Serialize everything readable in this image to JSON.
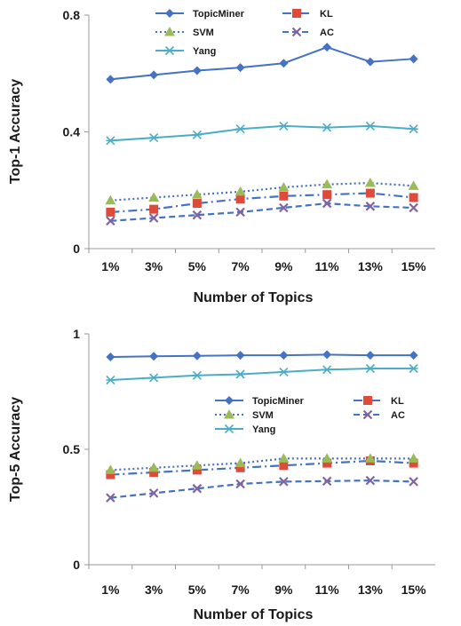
{
  "chart_data": [
    {
      "type": "line",
      "xlabel": "Number of Topics",
      "ylabel": "Top-1 Accuracy",
      "categories": [
        "1%",
        "3%",
        "5%",
        "7%",
        "9%",
        "11%",
        "13%",
        "15%"
      ],
      "ylim": [
        0,
        0.8
      ],
      "yticks": [
        0,
        0.4,
        0.8
      ],
      "ytick_labels": [
        "0",
        "0.4",
        "0.8"
      ],
      "legend_position": "top",
      "series": [
        {
          "name": "TopicMiner",
          "color": "#4472c4",
          "dash": "solid",
          "marker": "diamond",
          "values": [
            0.58,
            0.595,
            0.61,
            0.62,
            0.635,
            0.69,
            0.64,
            0.65
          ]
        },
        {
          "name": "KL",
          "color": "#4472c4",
          "dash": "dashdot",
          "marker": "square",
          "marker_color": "#e04a3a",
          "values": [
            0.125,
            0.135,
            0.155,
            0.17,
            0.18,
            0.185,
            0.19,
            0.175
          ]
        },
        {
          "name": "SVM",
          "color": "#4472c4",
          "dash": "dotted",
          "marker": "triangle",
          "marker_color": "#9bbb59",
          "values": [
            0.165,
            0.175,
            0.185,
            0.195,
            0.21,
            0.22,
            0.225,
            0.215
          ]
        },
        {
          "name": "AC",
          "color": "#4472c4",
          "dash": "dashed",
          "marker": "x",
          "marker_color": "#8064a2",
          "values": [
            0.095,
            0.105,
            0.115,
            0.125,
            0.14,
            0.155,
            0.145,
            0.14
          ]
        },
        {
          "name": "Yang",
          "color": "#4bacc6",
          "dash": "solid",
          "marker": "star",
          "values": [
            0.37,
            0.38,
            0.39,
            0.41,
            0.42,
            0.415,
            0.42,
            0.41
          ]
        }
      ]
    },
    {
      "type": "line",
      "xlabel": "Number of Topics",
      "ylabel": "Top-5 Accuracy",
      "categories": [
        "1%",
        "3%",
        "5%",
        "7%",
        "9%",
        "11%",
        "13%",
        "15%"
      ],
      "ylim": [
        0,
        1
      ],
      "yticks": [
        0,
        0.5,
        1
      ],
      "ytick_labels": [
        "0",
        "0.5",
        "1"
      ],
      "legend_position": "middle",
      "series": [
        {
          "name": "TopicMiner",
          "color": "#4472c4",
          "dash": "solid",
          "marker": "diamond",
          "values": [
            0.9,
            0.903,
            0.905,
            0.907,
            0.907,
            0.91,
            0.907,
            0.907
          ]
        },
        {
          "name": "KL",
          "color": "#4472c4",
          "dash": "dashdot",
          "marker": "square",
          "marker_color": "#e04a3a",
          "values": [
            0.39,
            0.4,
            0.41,
            0.42,
            0.43,
            0.44,
            0.45,
            0.44
          ]
        },
        {
          "name": "SVM",
          "color": "#4472c4",
          "dash": "dotted",
          "marker": "triangle",
          "marker_color": "#9bbb59",
          "values": [
            0.41,
            0.42,
            0.43,
            0.44,
            0.46,
            0.46,
            0.46,
            0.46
          ]
        },
        {
          "name": "AC",
          "color": "#4472c4",
          "dash": "dashed",
          "marker": "x",
          "marker_color": "#8064a2",
          "values": [
            0.29,
            0.31,
            0.33,
            0.35,
            0.36,
            0.362,
            0.365,
            0.36
          ]
        },
        {
          "name": "Yang",
          "color": "#4bacc6",
          "dash": "solid",
          "marker": "star",
          "values": [
            0.8,
            0.81,
            0.82,
            0.825,
            0.835,
            0.845,
            0.85,
            0.85
          ]
        }
      ]
    }
  ]
}
